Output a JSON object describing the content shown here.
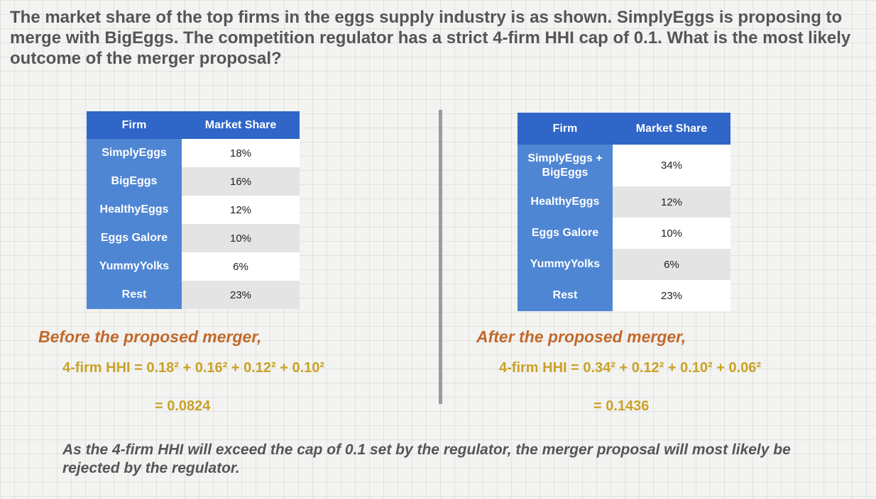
{
  "question": "The market share of the top firms in the eggs supply industry is as shown.  SimplyEggs is proposing to merge with BigEggs.  The competition regulator has a strict 4-firm HHI cap of 0.1.  What is the most likely outcome of the merger proposal?",
  "before": {
    "headers": [
      "Firm",
      "Market Share"
    ],
    "rows": [
      {
        "firm": "SimplyEggs",
        "share": "18%"
      },
      {
        "firm": "BigEggs",
        "share": "16%"
      },
      {
        "firm": "HealthyEggs",
        "share": "12%"
      },
      {
        "firm": "Eggs Galore",
        "share": "10%"
      },
      {
        "firm": "YummyYolks",
        "share": "6%"
      },
      {
        "firm": "Rest",
        "share": "23%"
      }
    ],
    "heading": "Before the proposed merger,",
    "formula": "4-firm HHI = 0.18² + 0.16² + 0.12² + 0.10²",
    "result": "= 0.0824"
  },
  "after": {
    "headers": [
      "Firm",
      "Market Share"
    ],
    "rows": [
      {
        "firm": "SimplyEggs + BigEggs",
        "share": "34%"
      },
      {
        "firm": "HealthyEggs",
        "share": "12%"
      },
      {
        "firm": "Eggs Galore",
        "share": "10%"
      },
      {
        "firm": "YummyYolks",
        "share": "6%"
      },
      {
        "firm": "Rest",
        "share": "23%"
      }
    ],
    "heading": "After the proposed merger,",
    "formula": "4-firm HHI = 0.34² + 0.12² + 0.10² + 0.06²",
    "result": "= 0.1436"
  },
  "conclusion": "As the 4-firm HHI will exceed the cap of 0.1 set by the regulator, the merger proposal will most likely be rejected by the regulator."
}
